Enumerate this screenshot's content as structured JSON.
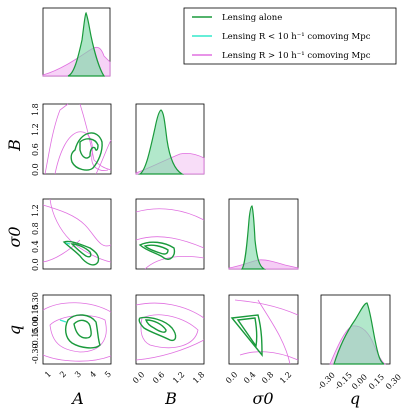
{
  "chart_data": {
    "type": "corner-plot",
    "parameters": [
      "A",
      "B",
      "σ0",
      "q"
    ],
    "axis_labels": {
      "A": "A",
      "B": "B",
      "sigma0": "σ0",
      "q": "q"
    },
    "ranges": {
      "A": [
        0.5,
        5.0
      ],
      "B": [
        0.0,
        2.0
      ],
      "sigma0": [
        0.0,
        1.5
      ],
      "q": [
        -0.45,
        0.3
      ]
    },
    "ticks": {
      "A": [
        "1",
        "2",
        "3",
        "4",
        "5"
      ],
      "B_y": [
        "0.0",
        "0.6",
        "1.2",
        "1.8"
      ],
      "B_x": [
        "0.0",
        "0.6",
        "1.2",
        "1.8"
      ],
      "sigma0_y": [
        "0.0",
        "0.4",
        "0.8",
        "1.2"
      ],
      "sigma0_x": [
        "0.0",
        "0.4",
        "0.8",
        "1.2"
      ],
      "q_y": [
        "0.30",
        "0.15",
        "0.00",
        "-0.15",
        "-0.30"
      ],
      "q_x": [
        "-0.30",
        "-0.15",
        "0.00",
        "0.15",
        "0.30"
      ]
    },
    "legend": {
      "placement": "top-right",
      "entries": [
        {
          "label": "Lensing alone",
          "color": "#1a9a3c"
        },
        {
          "label": "Lensing R < 10 h⁻¹ comoving Mpc",
          "color": "#33e8cc"
        },
        {
          "label": "Lensing R > 10 h⁻¹ comoving Mpc",
          "color": "#e070e0"
        }
      ]
    },
    "series": [
      {
        "name": "Lensing alone",
        "color": "#1a9a3c",
        "marginals": {
          "A": {
            "x": [
              1.8,
              2.5,
              2.8,
              3.0,
              3.1,
              3.3,
              3.6,
              3.9
            ],
            "y": [
              0,
              0.2,
              0.7,
              1.0,
              0.85,
              0.55,
              0.2,
              0
            ]
          },
          "B": {
            "x": [
              0.25,
              0.45,
              0.6,
              0.7,
              0.8,
              0.95,
              1.2
            ],
            "y": [
              0,
              0.3,
              0.7,
              1.0,
              0.7,
              0.25,
              0
            ]
          },
          "sigma0": {
            "x": [
              0.28,
              0.33,
              0.37,
              0.4,
              0.45,
              0.55
            ],
            "y": [
              0,
              0.3,
              0.8,
              1.0,
              0.3,
              0
            ]
          },
          "q": {
            "x": [
              -0.22,
              -0.12,
              -0.05,
              0.0,
              0.04,
              0.08,
              0.13,
              0.2
            ],
            "y": [
              0,
              0.4,
              0.6,
              0.85,
              1.0,
              0.7,
              0.3,
              0
            ]
          }
        }
      },
      {
        "name": "Lensing R > 10 h⁻¹ comoving Mpc",
        "color": "#e070e0",
        "marginals": {
          "A": {
            "x": [
              0.5,
              1.5,
              2.5,
              3.5,
              4.0,
              4.6,
              5.0
            ],
            "y": [
              0.02,
              0.1,
              0.3,
              0.45,
              0.5,
              0.3,
              0.2
            ]
          },
          "B": {
            "x": [
              0.0,
              0.5,
              1.0,
              1.3,
              1.6,
              2.0
            ],
            "y": [
              0.05,
              0.15,
              0.25,
              0.28,
              0.2,
              0.1
            ]
          },
          "sigma0": {
            "x": [
              0.0,
              0.3,
              0.55,
              0.8,
              1.1,
              1.5
            ],
            "y": [
              0.0,
              0.08,
              0.15,
              0.12,
              0.06,
              0.02
            ]
          },
          "q": {
            "x": [
              -0.3,
              -0.2,
              -0.1,
              0.0,
              0.1,
              0.2,
              0.25
            ],
            "y": [
              0.0,
              0.35,
              0.55,
              0.6,
              0.45,
              0.1,
              0.0
            ]
          }
        }
      }
    ]
  }
}
